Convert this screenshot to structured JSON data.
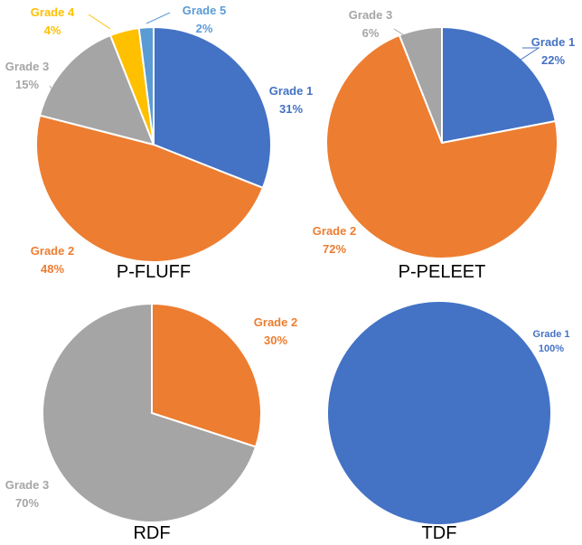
{
  "chart_data": [
    {
      "type": "pie",
      "title": "P-FLUFF",
      "slices": [
        {
          "label": "Grade 1",
          "value": 31,
          "value_label": "31%",
          "color": "#4472C4"
        },
        {
          "label": "Grade 2",
          "value": 48,
          "value_label": "48%",
          "color": "#ED7D31"
        },
        {
          "label": "Grade 3",
          "value": 15,
          "value_label": "15%",
          "color": "#A5A5A5"
        },
        {
          "label": "Grade 4",
          "value": 4,
          "value_label": "4%",
          "color": "#FFC000"
        },
        {
          "label": "Grade 5",
          "value": 2,
          "value_label": "2%",
          "color": "#5B9BD5"
        }
      ]
    },
    {
      "type": "pie",
      "title": "P-PELEET",
      "slices": [
        {
          "label": "Grade 1",
          "value": 22,
          "value_label": "22%",
          "color": "#4472C4"
        },
        {
          "label": "Grade 2",
          "value": 72,
          "value_label": "72%",
          "color": "#ED7D31"
        },
        {
          "label": "Grade 3",
          "value": 6,
          "value_label": "6%",
          "color": "#A5A5A5"
        }
      ]
    },
    {
      "type": "pie",
      "title": "RDF",
      "slices": [
        {
          "label": "Grade 2",
          "value": 30,
          "value_label": "30%",
          "color": "#ED7D31"
        },
        {
          "label": "Grade 3",
          "value": 70,
          "value_label": "70%",
          "color": "#A5A5A5"
        }
      ]
    },
    {
      "type": "pie",
      "title": "TDF",
      "slices": [
        {
          "label": "Grade 1",
          "value": 100,
          "value_label": "100%",
          "color": "#4472C4"
        }
      ]
    }
  ]
}
